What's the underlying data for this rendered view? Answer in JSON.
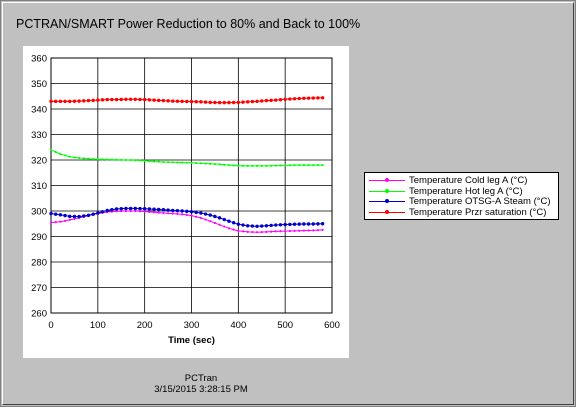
{
  "window": {
    "title": "PCTRAN/SMART Power Reduction to 80% and Back to 100%",
    "footer_app": "PCTran",
    "footer_timestamp": "3/15/2015 3:28:15 PM"
  },
  "chart_data": {
    "type": "line",
    "title": "PCTRAN/SMART Power Reduction to 80% and Back to 100%",
    "xlabel": "Time (sec)",
    "ylabel": "",
    "xlim": [
      0,
      600
    ],
    "ylim": [
      260,
      360
    ],
    "xticks": [
      0,
      100,
      200,
      300,
      400,
      500,
      600
    ],
    "yticks": [
      260,
      270,
      280,
      290,
      300,
      310,
      320,
      330,
      340,
      350,
      360
    ],
    "grid": true,
    "legend_position": "right",
    "x": [
      0,
      20,
      40,
      60,
      80,
      100,
      120,
      140,
      160,
      180,
      200,
      220,
      240,
      260,
      280,
      300,
      320,
      340,
      360,
      380,
      400,
      420,
      440,
      460,
      480,
      500,
      520,
      540,
      560,
      580
    ],
    "series": [
      {
        "name": "Temperature Cold leg A (°C)",
        "color": "#ff00ff",
        "marker": "small",
        "values": [
          295.5,
          295.8,
          296.5,
          297.3,
          298.2,
          299.0,
          299.6,
          299.9,
          300.0,
          300.0,
          299.8,
          299.5,
          299.2,
          299.0,
          298.7,
          298.2,
          297.3,
          296.0,
          294.6,
          293.2,
          292.2,
          291.8,
          291.7,
          291.8,
          292.0,
          292.1,
          292.2,
          292.3,
          292.4,
          292.6
        ]
      },
      {
        "name": "Temperature Hot leg A (°C)",
        "color": "#00ff00",
        "marker": "small",
        "values": [
          324.0,
          322.3,
          321.3,
          320.8,
          320.5,
          320.3,
          320.2,
          320.1,
          320.0,
          319.9,
          319.7,
          319.4,
          319.2,
          319.1,
          319.0,
          318.9,
          318.7,
          318.5,
          318.3,
          318.0,
          317.8,
          317.7,
          317.7,
          317.7,
          317.8,
          317.9,
          318.0,
          318.0,
          318.0,
          318.0
        ]
      },
      {
        "name": "Temperature OTSG-A Steam (°C)",
        "color": "#0000cc",
        "marker": "dot",
        "values": [
          299.0,
          298.5,
          297.9,
          297.8,
          298.3,
          299.2,
          300.2,
          300.8,
          301.0,
          301.0,
          300.9,
          300.7,
          300.5,
          300.2,
          300.0,
          299.7,
          299.2,
          298.4,
          297.3,
          296.0,
          294.8,
          294.2,
          294.0,
          294.2,
          294.5,
          294.7,
          294.8,
          294.9,
          294.9,
          295.0
        ]
      },
      {
        "name": "Temperature Przr saturation (°C)",
        "color": "#ff0000",
        "marker": "dot",
        "values": [
          343.0,
          343.0,
          343.0,
          343.1,
          343.3,
          343.5,
          343.7,
          343.7,
          343.8,
          343.8,
          343.7,
          343.5,
          343.3,
          343.1,
          343.0,
          342.9,
          342.8,
          342.6,
          342.5,
          342.5,
          342.6,
          342.8,
          343.0,
          343.3,
          343.5,
          343.8,
          344.0,
          344.2,
          344.3,
          344.4
        ]
      }
    ]
  }
}
